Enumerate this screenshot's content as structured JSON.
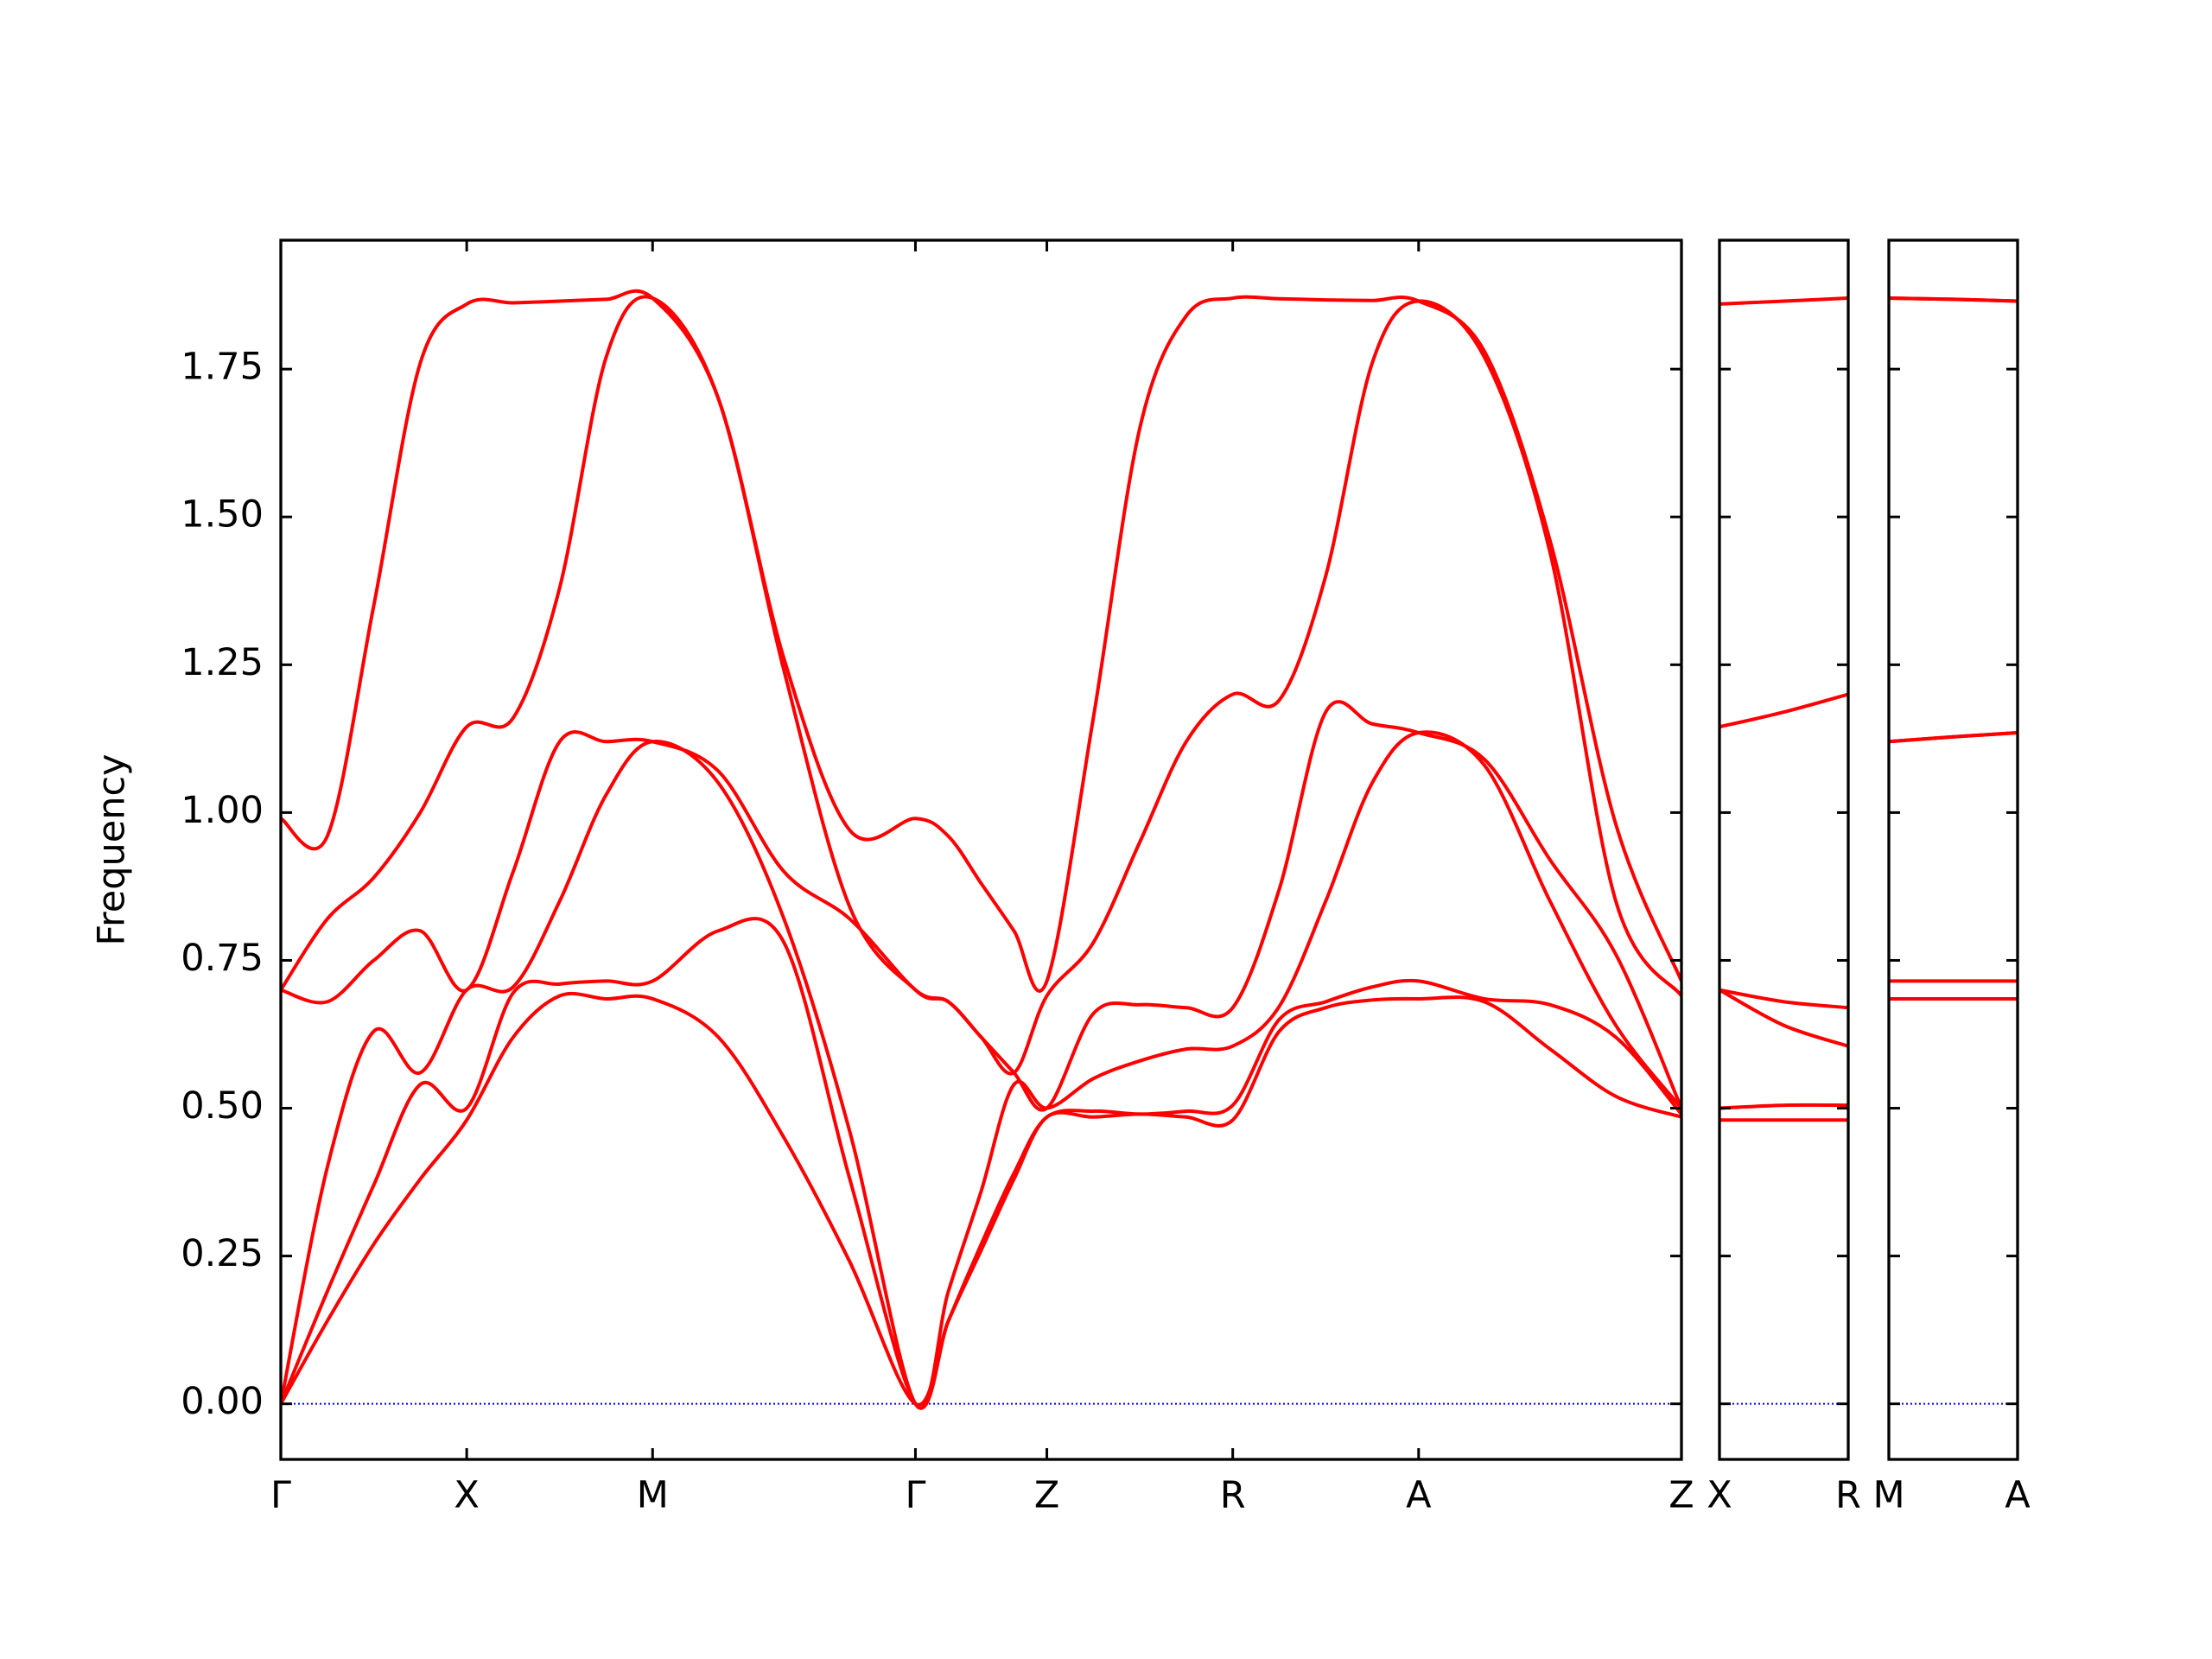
{
  "chart_data": [
    {
      "type": "line",
      "y_label": "Frequency",
      "color": "#ff0000",
      "x": [
        0,
        0.25,
        0.5,
        0.75,
        1,
        1.25,
        1.5,
        1.75,
        2,
        2.354,
        2.707,
        3.061,
        3.414,
        3.591,
        3.768,
        3.944,
        4.121,
        4.371,
        4.621,
        4.871,
        5.121,
        5.371,
        5.621,
        5.871,
        6.121,
        6.475,
        6.828,
        7.182,
        7.535
      ],
      "series": [
        {
          "values": [
            0,
            0.14,
            0.27,
            0.38,
            0.48,
            0.62,
            0.69,
            0.685,
            0.685,
            0.62,
            0.45,
            0.24,
            0,
            0.14,
            0.26,
            0.38,
            0.485,
            0.485,
            0.49,
            0.485,
            0.48,
            0.63,
            0.67,
            0.683,
            0.685,
            0.68,
            0.6,
            0.52,
            0.485
          ]
        },
        {
          "values": [
            0,
            0.19,
            0.37,
            0.54,
            0.5,
            0.695,
            0.71,
            0.715,
            0.715,
            0.8,
            0.78,
            0.38,
            0,
            0.14,
            0.27,
            0.39,
            0.485,
            0.495,
            0.49,
            0.495,
            0.505,
            0.65,
            0.68,
            0.705,
            0.715,
            0.685,
            0.675,
            0.62,
            0.49
          ]
        },
        {
          "values": [
            0,
            0.4,
            0.63,
            0.56,
            0.7,
            0.705,
            0.85,
            1.03,
            1.12,
            1.05,
            0.82,
            0.46,
            0,
            0.19,
            0.36,
            0.54,
            0.5,
            0.55,
            0.58,
            0.6,
            0.605,
            0.672,
            0.85,
            1.05,
            1.135,
            1.08,
            0.85,
            0.64,
            0.5
          ]
        },
        {
          "values": [
            0.7,
            0.68,
            0.75,
            0.8,
            0.7,
            0.9,
            1.12,
            1.12,
            1.12,
            1.07,
            0.9,
            0.82,
            0.7,
            0.68,
            0.62,
            0.56,
            0.5,
            0.66,
            0.675,
            0.67,
            0.67,
            0.87,
            1.17,
            1.15,
            1.135,
            1.09,
            0.92,
            0.76,
            0.5
          ]
        },
        {
          "values": [
            0.7,
            0.82,
            0.89,
            1.0,
            1.145,
            1.16,
            1.38,
            1.77,
            1.87,
            1.7,
            1.24,
            0.84,
            0.7,
            0.68,
            0.62,
            0.56,
            0.69,
            0.78,
            0.95,
            1.12,
            1.2,
            1.19,
            1.4,
            1.76,
            1.865,
            1.77,
            1.44,
            0.85,
            0.69
          ]
        },
        {
          "values": [
            0.99,
            0.96,
            1.35,
            1.76,
            1.86,
            1.862,
            1.865,
            1.868,
            1.87,
            1.7,
            1.26,
            0.97,
            0.99,
            0.96,
            0.88,
            0.8,
            0.715,
            1.16,
            1.65,
            1.84,
            1.87,
            1.869,
            1.867,
            1.866,
            1.865,
            1.78,
            1.46,
            0.98,
            0.715
          ]
        }
      ],
      "xlim": [
        0,
        7.535
      ],
      "xticks": [
        {
          "value": 0,
          "label": "Γ"
        },
        {
          "value": 1,
          "label": "X"
        },
        {
          "value": 2,
          "label": "M"
        },
        {
          "value": 3.414,
          "label": "Γ"
        },
        {
          "value": 4.121,
          "label": "Z"
        },
        {
          "value": 5.121,
          "label": "R"
        },
        {
          "value": 6.121,
          "label": "A"
        },
        {
          "value": 7.535,
          "label": "Z"
        }
      ],
      "ylim": [
        -0.094,
        1.968
      ],
      "yticks": [
        {
          "value": 0,
          "label": "0.00"
        },
        0.25,
        {
          "value": 0.5,
          "label": "0.50"
        },
        0.75,
        {
          "value": 1,
          "label": "1.00"
        },
        1.25,
        {
          "value": 1.5,
          "label": "1.50"
        },
        1.75
      ],
      "hlines": [
        0
      ],
      "hline_color": "#0000ff"
    },
    {
      "type": "line",
      "color": "#ff0000",
      "x": [
        0,
        0.354,
        0.707
      ],
      "series": [
        {
          "values": [
            0.48,
            0.48,
            0.48
          ]
        },
        {
          "values": [
            0.5,
            0.505,
            0.505
          ]
        },
        {
          "values": [
            0.7,
            0.64,
            0.605
          ]
        },
        {
          "values": [
            0.7,
            0.68,
            0.67
          ]
        },
        {
          "values": [
            1.145,
            1.17,
            1.2
          ]
        },
        {
          "values": [
            1.86,
            1.865,
            1.87
          ]
        }
      ],
      "xlim": [
        0,
        0.707
      ],
      "xticks": [
        {
          "value": 0,
          "label": "X"
        },
        {
          "value": 0.707,
          "label": "R"
        }
      ],
      "ylim": [
        -0.094,
        1.968
      ],
      "yticks": [
        0,
        0.25,
        0.5,
        0.75,
        1,
        1.25,
        1.5,
        1.75
      ],
      "hlines": [
        0
      ],
      "hline_color": "#0000ff"
    },
    {
      "type": "line",
      "color": "#ff0000",
      "x": [
        0,
        0.354,
        0.707
      ],
      "series": [
        {
          "values": [
            0.685,
            0.685,
            0.685
          ]
        },
        {
          "values": [
            0.715,
            0.715,
            0.715
          ]
        },
        {
          "values": [
            1.12,
            1.128,
            1.135
          ]
        },
        {
          "values": [
            1.12,
            1.128,
            1.135
          ]
        },
        {
          "values": [
            1.87,
            1.868,
            1.865
          ]
        },
        {
          "values": [
            1.87,
            1.868,
            1.865
          ]
        }
      ],
      "xlim": [
        0,
        0.707
      ],
      "xticks": [
        {
          "value": 0,
          "label": "M"
        },
        {
          "value": 0.707,
          "label": "A"
        }
      ],
      "ylim": [
        -0.094,
        1.968
      ],
      "yticks": [
        0,
        0.25,
        0.5,
        0.75,
        1,
        1.25,
        1.5,
        1.75
      ],
      "hlines": [
        0
      ],
      "hline_color": "#0000ff"
    }
  ]
}
